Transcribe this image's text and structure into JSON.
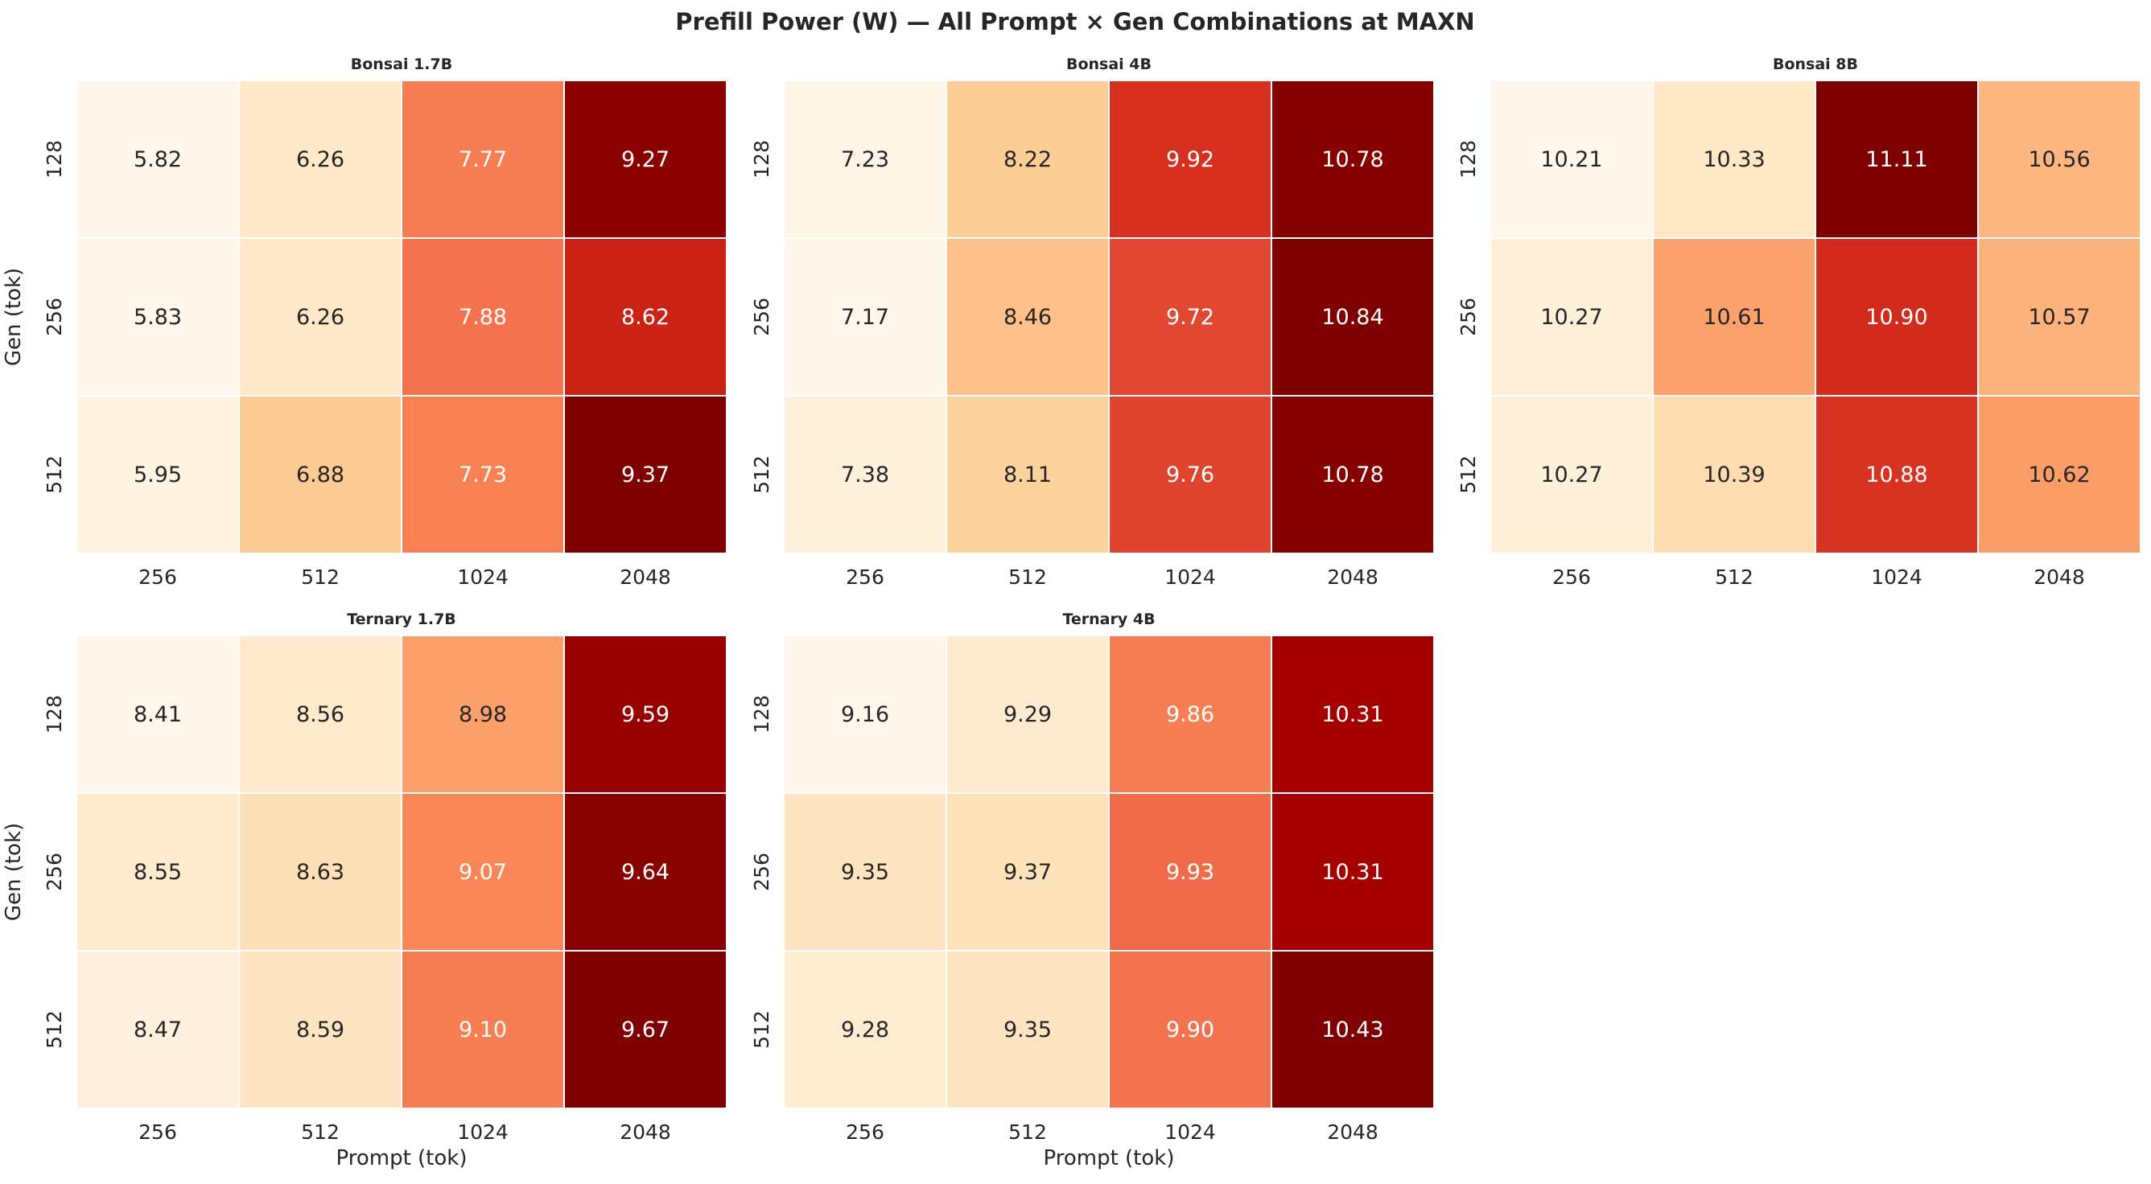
{
  "title": "Prefill Power (W) — All Prompt × Gen Combinations at MAXN",
  "chart_data": [
    {
      "type": "heatmap",
      "title": "Bonsai 1.7B",
      "xlabel": "",
      "ylabel": "Gen (tok)",
      "x_categories": [
        "256",
        "512",
        "1024",
        "2048"
      ],
      "y_categories": [
        "128",
        "256",
        "512"
      ],
      "values": [
        [
          5.82,
          6.26,
          7.77,
          9.27
        ],
        [
          5.83,
          6.26,
          7.88,
          8.62
        ],
        [
          5.95,
          6.88,
          7.73,
          9.37
        ]
      ],
      "labels": [
        [
          "5.82",
          "6.26",
          "7.77",
          "9.27"
        ],
        [
          "5.83",
          "6.26",
          "7.88",
          "8.62"
        ],
        [
          "5.95",
          "6.88",
          "7.73",
          "9.37"
        ]
      ],
      "colormap": "OrRd"
    },
    {
      "type": "heatmap",
      "title": "Bonsai 4B",
      "xlabel": "",
      "ylabel": "",
      "x_categories": [
        "256",
        "512",
        "1024",
        "2048"
      ],
      "y_categories": [
        "128",
        "256",
        "512"
      ],
      "values": [
        [
          7.23,
          8.22,
          9.92,
          10.78
        ],
        [
          7.17,
          8.46,
          9.72,
          10.84
        ],
        [
          7.38,
          8.11,
          9.76,
          10.78
        ]
      ],
      "labels": [
        [
          "7.23",
          "8.22",
          "9.92",
          "10.78"
        ],
        [
          "7.17",
          "8.46",
          "9.72",
          "10.84"
        ],
        [
          "7.38",
          "8.11",
          "9.76",
          "10.78"
        ]
      ],
      "colormap": "OrRd"
    },
    {
      "type": "heatmap",
      "title": "Bonsai 8B",
      "xlabel": "",
      "ylabel": "",
      "x_categories": [
        "256",
        "512",
        "1024",
        "2048"
      ],
      "y_categories": [
        "128",
        "256",
        "512"
      ],
      "values": [
        [
          10.21,
          10.33,
          11.11,
          10.56
        ],
        [
          10.27,
          10.61,
          10.9,
          10.57
        ],
        [
          10.27,
          10.39,
          10.88,
          10.62
        ]
      ],
      "labels": [
        [
          "10.21",
          "10.33",
          "11.11",
          "10.56"
        ],
        [
          "10.27",
          "10.61",
          "10.90",
          "10.57"
        ],
        [
          "10.27",
          "10.39",
          "10.88",
          "10.62"
        ]
      ],
      "colormap": "OrRd"
    },
    {
      "type": "heatmap",
      "title": "Ternary 1.7B",
      "xlabel": "Prompt (tok)",
      "ylabel": "Gen (tok)",
      "x_categories": [
        "256",
        "512",
        "1024",
        "2048"
      ],
      "y_categories": [
        "128",
        "256",
        "512"
      ],
      "values": [
        [
          8.41,
          8.56,
          8.98,
          9.59
        ],
        [
          8.55,
          8.63,
          9.07,
          9.64
        ],
        [
          8.47,
          8.59,
          9.1,
          9.67
        ]
      ],
      "labels": [
        [
          "8.41",
          "8.56",
          "8.98",
          "9.59"
        ],
        [
          "8.55",
          "8.63",
          "9.07",
          "9.64"
        ],
        [
          "8.47",
          "8.59",
          "9.10",
          "9.67"
        ]
      ],
      "colormap": "OrRd"
    },
    {
      "type": "heatmap",
      "title": "Ternary 4B",
      "xlabel": "Prompt (tok)",
      "ylabel": "",
      "x_categories": [
        "256",
        "512",
        "1024",
        "2048"
      ],
      "y_categories": [
        "128",
        "256",
        "512"
      ],
      "values": [
        [
          9.16,
          9.29,
          9.86,
          10.31
        ],
        [
          9.35,
          9.37,
          9.93,
          10.31
        ],
        [
          9.28,
          9.35,
          9.9,
          10.43
        ]
      ],
      "labels": [
        [
          "9.16",
          "9.29",
          "9.86",
          "10.31"
        ],
        [
          "9.35",
          "9.37",
          "9.93",
          "10.31"
        ],
        [
          "9.28",
          "9.35",
          "9.90",
          "10.43"
        ]
      ],
      "colormap": "OrRd"
    }
  ]
}
